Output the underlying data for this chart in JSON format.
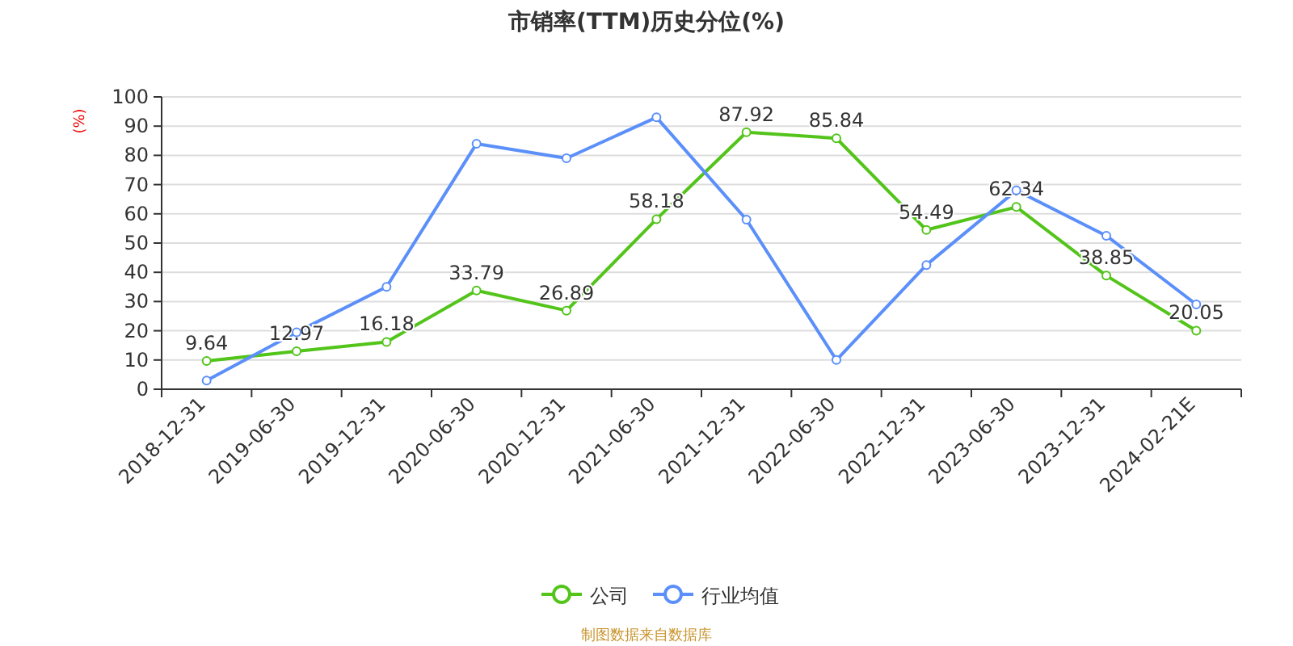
{
  "chart_data": {
    "type": "line",
    "title": "市销率(TTM)历史分位(%)",
    "ylabel": "(%)",
    "categories": [
      "2018-12-31",
      "2019-06-30",
      "2019-12-31",
      "2020-06-30",
      "2020-12-31",
      "2021-06-30",
      "2021-12-31",
      "2022-06-30",
      "2022-12-31",
      "2023-06-30",
      "2023-12-31",
      "2024-02-21E"
    ],
    "series": [
      {
        "name": "公司",
        "color": "#52c41a",
        "values": [
          9.64,
          12.97,
          16.18,
          33.79,
          26.89,
          58.18,
          87.92,
          85.84,
          54.49,
          62.34,
          38.85,
          20.05
        ],
        "data_labels": true
      },
      {
        "name": "行业均值",
        "color": "#5b8ff9",
        "values": [
          3,
          19.5,
          35,
          84,
          79,
          93,
          58,
          10,
          42.5,
          68,
          52.5,
          29
        ]
      }
    ],
    "ylim": [
      0,
      100
    ],
    "yticks": [
      0,
      10,
      20,
      30,
      40,
      50,
      60,
      70,
      80,
      90,
      100
    ],
    "grid": "y",
    "legend": "bottom",
    "marker": "circle",
    "line_style": "solid",
    "annotations": [
      "制图数据来自数据库"
    ]
  }
}
